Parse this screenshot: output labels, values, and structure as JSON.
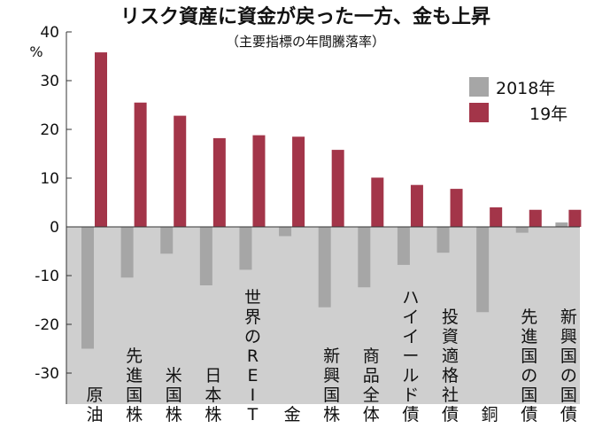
{
  "chart_data": {
    "type": "bar",
    "title": "リスク資産に資金が戻った一方、金も上昇",
    "subtitle": "（主要指標の年間騰落率）",
    "unit": "%",
    "ylim": [
      -30,
      40
    ],
    "yticks": [
      40,
      30,
      20,
      10,
      0,
      -10,
      -20,
      -30
    ],
    "grid": false,
    "legend_position": "top-right",
    "categories": [
      "原油",
      "先進国株",
      "米国株",
      "日本株",
      "世界のREIT",
      "金",
      "新興国株",
      "商品全体",
      "ハイイールド債",
      "投資適格社債",
      "銅",
      "先進国の国債",
      "新興国の国債"
    ],
    "series": [
      {
        "name": "2018年",
        "color": "#a6a6a6",
        "values": [
          -25,
          -10.4,
          -5.5,
          -12,
          -8.8,
          -1.9,
          -16.5,
          -12.4,
          -7.8,
          -5.3,
          -17.5,
          -1.2,
          0.9
        ]
      },
      {
        "name": "19年",
        "color": "#a33549",
        "values": [
          35.8,
          25.5,
          22.8,
          18.2,
          18.8,
          18.5,
          15.8,
          10.1,
          8.6,
          7.8,
          4,
          3.5,
          3.5
        ]
      }
    ],
    "negative_zone_color": "#cfcfcf"
  }
}
